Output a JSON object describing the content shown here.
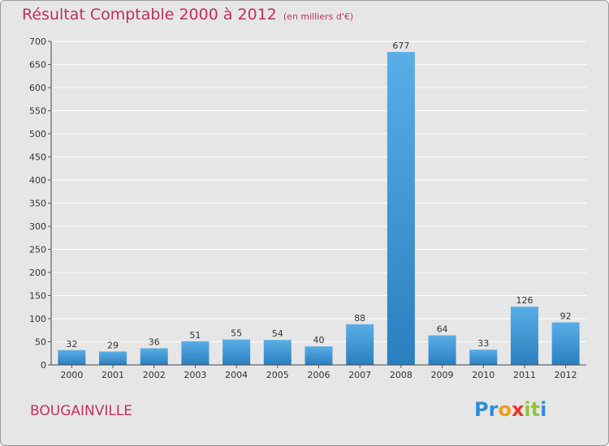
{
  "title": "Résultat Comptable 2000 à 2012",
  "subtitle": "(en milliers d'€)",
  "town": "BOUGAINVILLE",
  "logo": {
    "letters": [
      "P",
      "r",
      "o",
      "x",
      "i",
      "t",
      "i"
    ],
    "colors": [
      "#2b8fd6",
      "#2b8fd6",
      "#f29a1e",
      "#e8362a",
      "#8cc63f",
      "#8cc63f",
      "#2b8fd6"
    ]
  },
  "colors": {
    "bar_top": "#5aaee6",
    "bar_bottom": "#2a7fbf",
    "text": "#333333",
    "grid": "#ffffff",
    "title": "#c0305e"
  },
  "chart_data": {
    "type": "bar",
    "title": "Résultat Comptable 2000 à 2012",
    "xlabel": "",
    "ylabel": "",
    "ylim": [
      0,
      700
    ],
    "yticks": [
      0,
      50,
      100,
      150,
      200,
      250,
      300,
      350,
      400,
      450,
      500,
      550,
      600,
      650,
      700
    ],
    "categories": [
      "2000",
      "2001",
      "2002",
      "2003",
      "2004",
      "2005",
      "2006",
      "2007",
      "2008",
      "2009",
      "2010",
      "2011",
      "2012"
    ],
    "values": [
      32,
      29,
      36,
      51,
      55,
      54,
      40,
      88,
      677,
      64,
      33,
      126,
      92
    ],
    "grid": true
  }
}
